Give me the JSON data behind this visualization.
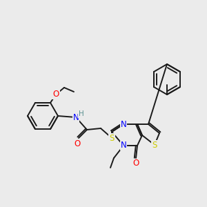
{
  "background_color": "#ebebeb",
  "bond_color": "#1a1a1a",
  "atom_colors": {
    "N": "#0000ff",
    "O": "#ff0000",
    "S": "#cccc00",
    "H": "#5a9090",
    "C": "#1a1a1a"
  },
  "figsize": [
    3.0,
    3.0
  ],
  "dpi": 100
}
